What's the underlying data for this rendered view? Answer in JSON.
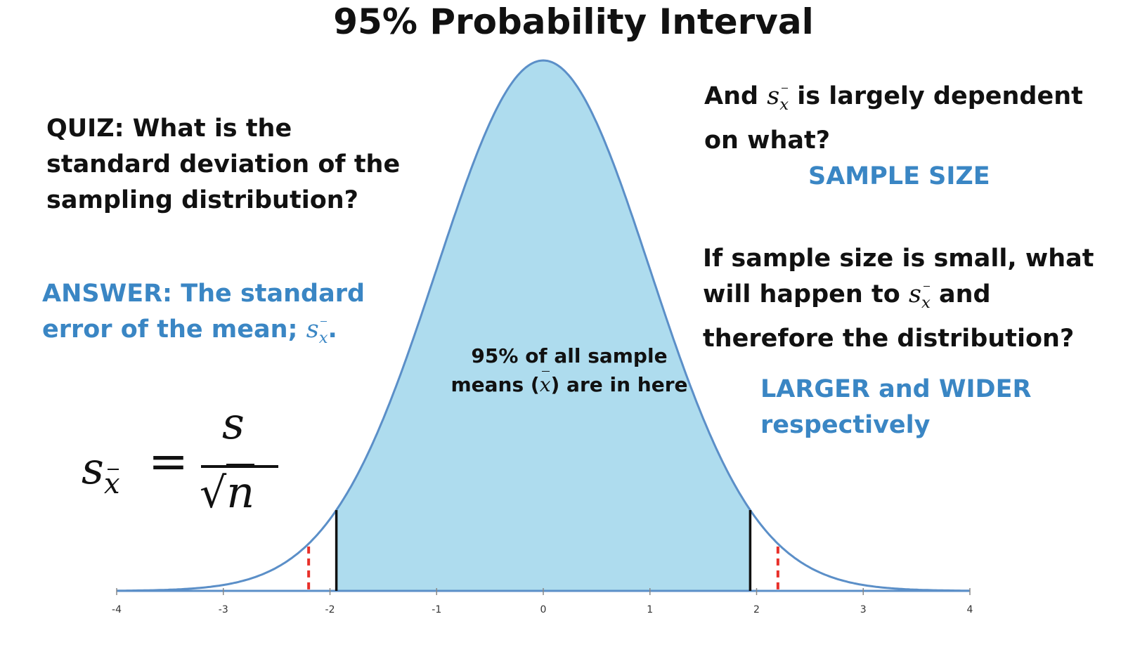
{
  "title": "95% Probability Interval",
  "quiz": {
    "question": [
      "QUIZ: What is the",
      "standard deviation of the",
      "sampling distribution?"
    ],
    "answer_line1": "ANSWER: The standard",
    "answer_line2": "error of the mean;",
    "answer_symbol": "s",
    "answer_symbol_sub": "x",
    "answer_end": "."
  },
  "formula": {
    "lhs": "s",
    "lhs_sub": "x",
    "equals": "=",
    "numerator": "s",
    "radical": "√",
    "denominator": "n"
  },
  "dependency": {
    "line1_start": "And",
    "symbol": "s",
    "symbol_sub": "x",
    "line1_end": "is  largely dependent",
    "line2": "on what?",
    "answer": "SAMPLE SIZE"
  },
  "small_sample": {
    "line1": "If sample size is small, what",
    "line2_start": "will happen to",
    "symbol": "s",
    "symbol_sub": "x",
    "line2_end": "and",
    "line3": "therefore the distribution?",
    "answer_line1": "LARGER and WIDER",
    "answer_line2": "respectively"
  },
  "region_label": {
    "line1": "95% of all sample",
    "line2_start": "means (",
    "line2_symbol": "x",
    "line2_end": ") are in here"
  },
  "colors": {
    "curve": "#5b8fc8",
    "fill": "#aedcee",
    "accent_text": "#3a86c4",
    "dashed": "#e8302a",
    "solid": "#111111"
  },
  "chart_data": {
    "type": "area",
    "distribution": "standard normal",
    "x_range": [
      -4,
      4
    ],
    "ticks": [
      -4,
      -3,
      -2,
      -1,
      0,
      1,
      2,
      3,
      4
    ],
    "tick_labels": [
      "-4",
      "-3",
      "-2",
      "-1",
      "0",
      "1",
      "2",
      "3",
      "4"
    ],
    "shaded_interval": [
      -1.94,
      1.94
    ],
    "solid_boundaries": [
      -1.94,
      1.94
    ],
    "dashed_boundaries": [
      -2.2,
      2.2
    ]
  }
}
